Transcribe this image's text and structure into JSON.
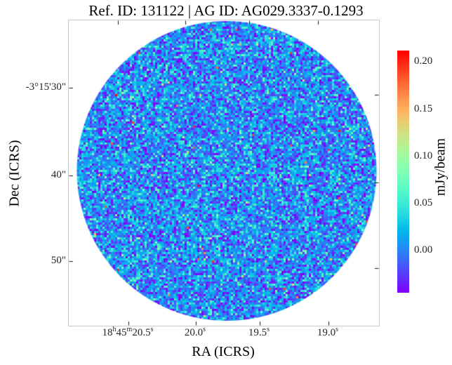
{
  "chart_data": {
    "type": "heatmap",
    "title": "Ref. ID: 131122 | AG ID: AG029.3337-0.1293",
    "xlabel": "RA (ICRS)",
    "ylabel": "Dec (ICRS)",
    "x_tick_labels": [
      "18h45m20.5s",
      "20.0s",
      "19.5s",
      "19.0s"
    ],
    "x_tick_superscript_parts": [
      [
        [
          "18",
          false
        ],
        [
          "h",
          true
        ],
        [
          "45",
          false
        ],
        [
          "m",
          true
        ],
        [
          "20.5",
          false
        ],
        [
          "s",
          true
        ]
      ],
      [
        [
          "20.0",
          false
        ],
        [
          "s",
          true
        ]
      ],
      [
        [
          "19.5",
          false
        ],
        [
          "s",
          true
        ]
      ],
      [
        [
          "19.0",
          false
        ],
        [
          "s",
          true
        ]
      ]
    ],
    "y_tick_labels": [
      "-3°15'30\"",
      "40\"",
      "50\""
    ],
    "colorbar": {
      "label": "mJy/beam",
      "tick_labels": [
        "0.20",
        "0.15",
        "0.10",
        "0.05",
        "0.00"
      ],
      "tick_values": [
        0.2,
        0.15,
        0.1,
        0.05,
        0.0
      ],
      "vmin": -0.046,
      "vmax": 0.211,
      "colormap": "rainbow"
    },
    "image_content": {
      "aperture": "circle",
      "signal": "background noise only, no visible source",
      "noise_mean_mjy_per_beam": 0.004,
      "noise_sigma_mjy_per_beam": 0.031
    }
  }
}
